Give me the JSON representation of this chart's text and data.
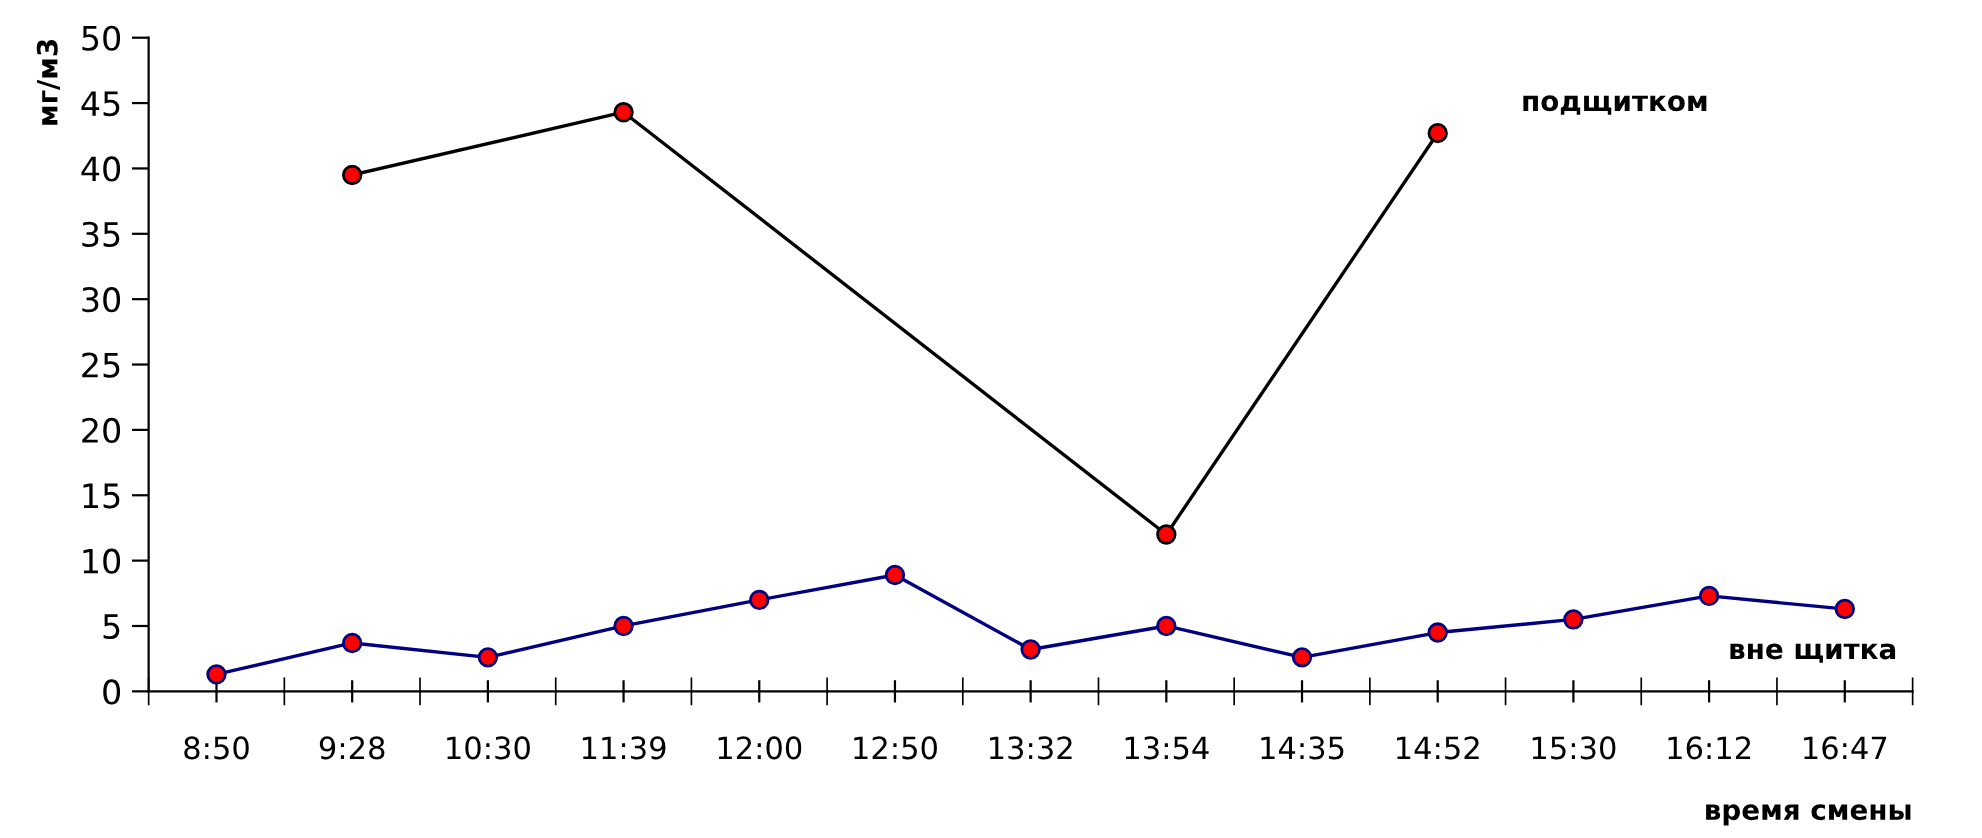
{
  "chart_data": {
    "type": "line",
    "xlabel": "время смены",
    "ylabel": "мг/м3",
    "categories": [
      "8:50",
      "9:28",
      "10:30",
      "11:39",
      "12:00",
      "12:50",
      "13:32",
      "13:54",
      "14:35",
      "14:52",
      "15:30",
      "16:12",
      "16:47"
    ],
    "series": [
      {
        "name": "подщитком",
        "color": "#000000",
        "colors": [
          "#ff0000",
          "#ff0000",
          "#ff0000",
          "#ff0000",
          "#ff0000",
          "#ff0000",
          "#ff0000",
          "#ff0000",
          "#ff0000",
          "#ff0000",
          "#ff0000",
          "#ff0000",
          "#ff0000"
        ],
        "values": [
          null,
          39.5,
          null,
          44.3,
          null,
          null,
          null,
          12,
          null,
          42.7,
          null,
          null,
          null
        ]
      },
      {
        "name": "вне щитка",
        "color": "#000080",
        "colors": [
          "#ff0000",
          "#ff0000",
          "#ff0000",
          "#ff0000",
          "#ff0000",
          "#ff0000",
          "#ff0000",
          "#ff0000",
          "#ff0000",
          "#ff0000",
          "#ff0000",
          "#ff0000",
          "#ff0000"
        ],
        "values": [
          1.3,
          3.7,
          2.6,
          5,
          7,
          8.9,
          3.2,
          5,
          2.6,
          4.5,
          5.5,
          7.3,
          6.3
        ]
      }
    ],
    "ylim": [
      0,
      50
    ],
    "yticks": [
      0,
      5,
      10,
      15,
      20,
      25,
      30,
      35,
      40,
      45,
      50
    ],
    "grid": false,
    "legend": false,
    "marker": "circle",
    "line_style": "solid"
  }
}
